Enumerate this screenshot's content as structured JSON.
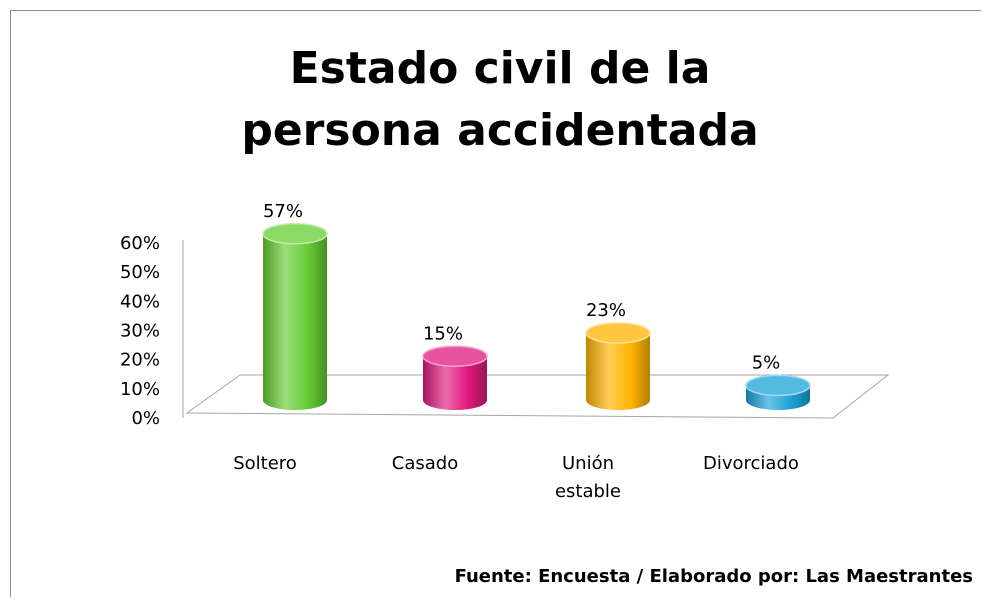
{
  "chart_data": {
    "type": "bar",
    "title": "Estado civil de la persona accidentada",
    "categories": [
      "Soltero",
      "Casado",
      "Unión estable",
      "Divorciado"
    ],
    "values": [
      57,
      15,
      23,
      5
    ],
    "value_labels": [
      "57%",
      "15%",
      "23%",
      "5%"
    ],
    "colors": [
      "#66cc33",
      "#e0197d",
      "#ffb400",
      "#1aa3d8"
    ],
    "ylim": [
      0,
      60
    ],
    "yticks": [
      {
        "value": 0,
        "label": "0%"
      },
      {
        "value": 10,
        "label": "10%"
      },
      {
        "value": 20,
        "label": "20%"
      },
      {
        "value": 30,
        "label": "30%"
      },
      {
        "value": 40,
        "label": "40%"
      },
      {
        "value": 50,
        "label": "50%"
      },
      {
        "value": 60,
        "label": "60%"
      }
    ],
    "source": "Fuente: Encuesta / Elaborado por: Las Maestrantes"
  }
}
